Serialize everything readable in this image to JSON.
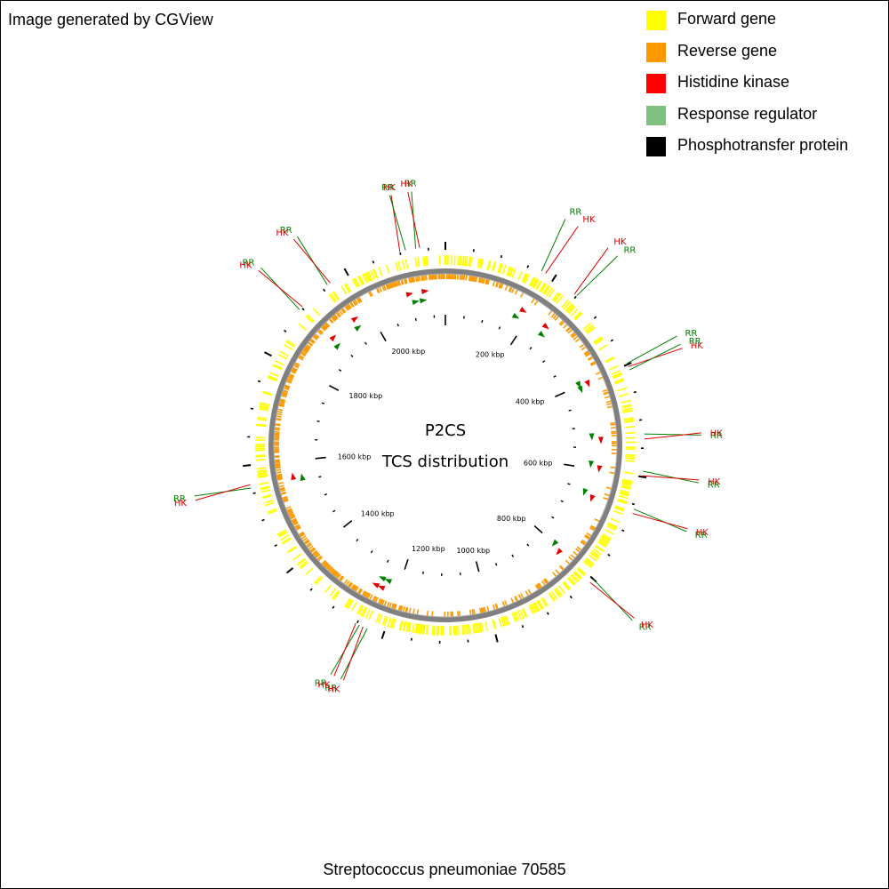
{
  "credit": "Image generated by CGView",
  "legend": [
    {
      "label": "Forward gene",
      "color": "#ffff00"
    },
    {
      "label": "Reverse gene",
      "color": "#ff9900"
    },
    {
      "label": "Histidine kinase",
      "color": "#ff0000"
    },
    {
      "label": "Response regulator",
      "color": "#7fbf7f"
    },
    {
      "label": "Phosphotransfer protein",
      "color": "#000000"
    }
  ],
  "center_title": {
    "line1": "P2CS",
    "line2": "TCS distribution"
  },
  "organism": "Streptococcus pneumoniae 70585",
  "map": {
    "genome_length_kbp": 2180,
    "ring_color": "#808080",
    "tick_labels": [
      {
        "kbp": 200,
        "text": "200 kbp"
      },
      {
        "kbp": 400,
        "text": "400 kbp"
      },
      {
        "kbp": 600,
        "text": "600 kbp"
      },
      {
        "kbp": 800,
        "text": "800 kbp"
      },
      {
        "kbp": 1000,
        "text": "1000 kbp"
      },
      {
        "kbp": 1200,
        "text": "1200 kbp"
      },
      {
        "kbp": 1400,
        "text": "1400 kbp"
      },
      {
        "kbp": 1600,
        "text": "1600 kbp"
      },
      {
        "kbp": 1800,
        "text": "1800 kbp"
      },
      {
        "kbp": 2000,
        "text": "2000 kbp"
      }
    ],
    "features": [
      {
        "kbp": 175,
        "type": "Response regulator",
        "label": "RR"
      },
      {
        "kbp": 183,
        "type": "Histidine kinase",
        "label": "HK"
      },
      {
        "kbp": 245,
        "type": "Histidine kinase",
        "label": "HK"
      },
      {
        "kbp": 250,
        "type": "Response regulator",
        "label": "RR"
      },
      {
        "kbp": 398,
        "type": "Response regulator",
        "label": "RR"
      },
      {
        "kbp": 404,
        "type": "Histidine kinase",
        "label": "HK"
      },
      {
        "kbp": 410,
        "type": "Response regulator",
        "label": "RR"
      },
      {
        "kbp": 525,
        "type": "Response regulator",
        "label": "RR"
      },
      {
        "kbp": 534,
        "type": "Histidine kinase",
        "label": "HK"
      },
      {
        "kbp": 590,
        "type": "Response regulator",
        "label": "RR"
      },
      {
        "kbp": 598,
        "type": "Histidine kinase",
        "label": "HK"
      },
      {
        "kbp": 658,
        "type": "Response regulator",
        "label": "RR"
      },
      {
        "kbp": 666,
        "type": "Histidine kinase",
        "label": "HK"
      },
      {
        "kbp": 800,
        "type": "Response regulator",
        "label": "RR"
      },
      {
        "kbp": 808,
        "type": "Histidine kinase",
        "label": "HK"
      },
      {
        "kbp": 1230,
        "type": "Response regulator",
        "label": "RR"
      },
      {
        "kbp": 1238,
        "type": "Histidine kinase",
        "label": "HK"
      },
      {
        "kbp": 1245,
        "type": "Response regulator",
        "label": "RR"
      },
      {
        "kbp": 1252,
        "type": "Histidine kinase",
        "label": "HK"
      },
      {
        "kbp": 1560,
        "type": "Response regulator",
        "label": "RR"
      },
      {
        "kbp": 1566,
        "type": "Histidine kinase",
        "label": "HK"
      },
      {
        "kbp": 1895,
        "type": "Response regulator",
        "label": "RR"
      },
      {
        "kbp": 1902,
        "type": "Histidine kinase",
        "label": "HK"
      },
      {
        "kbp": 1960,
        "type": "Response regulator",
        "label": "RR"
      },
      {
        "kbp": 1966,
        "type": "Histidine kinase",
        "label": "HK"
      },
      {
        "kbp": 2100,
        "type": "Histidine kinase",
        "label": "HK"
      },
      {
        "kbp": 2110,
        "type": "Response regulator",
        "label": "RR"
      },
      {
        "kbp": 2128,
        "type": "Response regulator",
        "label": "RR"
      },
      {
        "kbp": 2135,
        "type": "Histidine kinase",
        "label": "HK"
      }
    ]
  }
}
